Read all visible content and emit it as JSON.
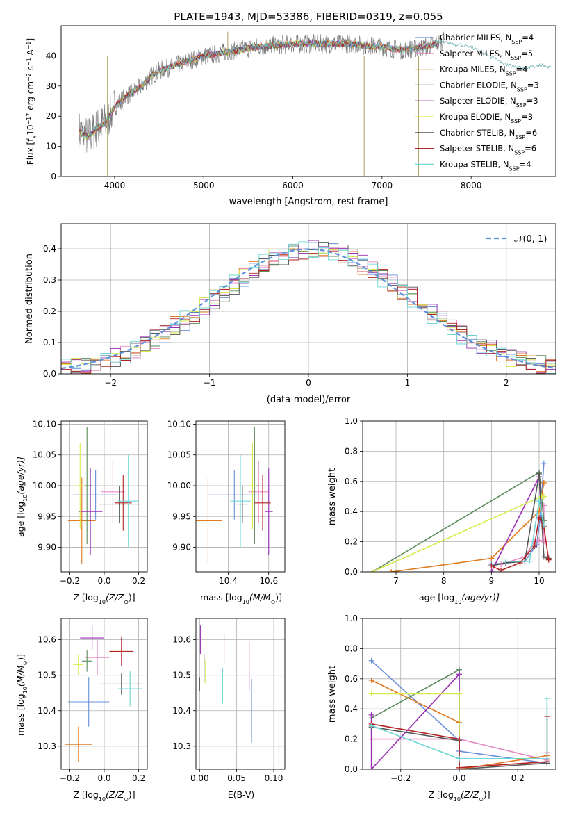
{
  "colors": [
    "#6a8fd8",
    "#e88bc5",
    "#e07a1f",
    "#5a8a5a",
    "#9a2fb5",
    "#d6ea4c",
    "#555555",
    "#b22222",
    "#6fd6d6"
  ],
  "legend": {
    "entries": [
      {
        "label": "Chabrier MILES, N",
        "sub": "SSP",
        "eq": "=4"
      },
      {
        "label": "Salpeter MILES, N",
        "sub": "SSP",
        "eq": "=5"
      },
      {
        "label": "Kroupa MILES, N",
        "sub": "SSP",
        "eq": "=4"
      },
      {
        "label": "Chabrier ELODIE, N",
        "sub": "SSP",
        "eq": "=3"
      },
      {
        "label": "Salpeter ELODIE, N",
        "sub": "SSP",
        "eq": "=3"
      },
      {
        "label": "Kroupa ELODIE, N",
        "sub": "SSP",
        "eq": "=3"
      },
      {
        "label": "Chabrier STELIB, N",
        "sub": "SSP",
        "eq": "=6"
      },
      {
        "label": "Salpeter STELIB, N",
        "sub": "SSP",
        "eq": "=6"
      },
      {
        "label": "Kroupa STELIB, N",
        "sub": "SSP",
        "eq": "=4"
      }
    ]
  },
  "chart_data": [
    {
      "id": "spectrum",
      "type": "line",
      "title": "PLATE=1943, MJD=53386, FIBERID=0319, z=0.055",
      "xlabel": "wavelength [Angstrom, rest frame]",
      "ylabel": "Flux [f",
      "ylabel_parts": [
        "λ",
        "10",
        "−17",
        "erg cm",
        "−2",
        "s",
        "−1",
        "A",
        "−1",
        "]"
      ],
      "xlim": [
        3400,
        8950
      ],
      "ylim": [
        0,
        50
      ],
      "xticks": [
        4000,
        5000,
        6000,
        7000,
        8000
      ],
      "yticks": [
        0,
        10,
        20,
        30,
        40
      ],
      "continuum": {
        "x": [
          3600,
          3700,
          3800,
          3900,
          4000,
          4100,
          4200,
          4300,
          4400,
          4500,
          4600,
          4800,
          5000,
          5200,
          5400,
          5600,
          5800,
          6000,
          6200,
          6400,
          6600,
          6800,
          7000,
          7200,
          7400,
          7600,
          7700
        ],
        "y": [
          15,
          13,
          16,
          18,
          23,
          26,
          28,
          30,
          33,
          35,
          36,
          38,
          40,
          41,
          42,
          43,
          43.5,
          44,
          44,
          44,
          44,
          43.5,
          43,
          42,
          42.5,
          44,
          45
        ]
      },
      "data_end": {
        "x": [
          7600,
          7800,
          8000,
          8200,
          8400,
          8600,
          8800,
          8900
        ],
        "y": [
          45,
          44,
          43,
          40,
          37,
          36,
          37,
          36
        ]
      },
      "spikes": [
        {
          "x": 3920,
          "y": 0
        },
        {
          "x": 6800,
          "y": 0
        },
        {
          "x": 7410,
          "y": 0
        },
        {
          "x": 5270,
          "y": 48
        }
      ]
    },
    {
      "id": "residuals",
      "type": "step",
      "xlabel": "(data-model)/error",
      "ylabel": "Normed distribution",
      "xlim": [
        -2.5,
        2.5
      ],
      "ylim": [
        0,
        0.48
      ],
      "xticks": [
        -2,
        -1,
        0,
        1,
        2
      ],
      "yticks": [
        0.0,
        0.1,
        0.2,
        0.3,
        0.4
      ],
      "legend_label": "𝒩(0, 1)",
      "bin_width": 0.1
    },
    {
      "id": "age_vs_Z",
      "type": "scatter",
      "xlabel": "Z [log",
      "xlabel_parts": [
        "10",
        "(Z/Z",
        "⊙",
        ")]"
      ],
      "ylabel": "age  [log",
      "ylabel_parts": [
        "10",
        "(age/yr)]"
      ],
      "xlim": [
        -0.25,
        0.25
      ],
      "ylim": [
        9.86,
        10.105
      ],
      "xticks": [
        -0.2,
        0.0,
        0.2
      ],
      "yticks": [
        9.9,
        9.95,
        10.0,
        10.05,
        10.1
      ],
      "points": [
        {
          "x": -0.05,
          "xerr": 0.13,
          "y": 9.985,
          "yerr": 0.04
        },
        {
          "x": 0.05,
          "xerr": 0.07,
          "y": 9.99,
          "yerr": 0.05
        },
        {
          "x": -0.13,
          "xerr": 0.08,
          "y": 9.943,
          "yerr": 0.07
        },
        {
          "x": -0.1,
          "xerr": 0.03,
          "y": 10.0,
          "yerr": 0.095
        },
        {
          "x": -0.08,
          "xerr": 0.07,
          "y": 9.958,
          "yerr": 0.07
        },
        {
          "x": -0.14,
          "xerr": 0.03,
          "y": 10.0,
          "yerr": 0.07
        },
        {
          "x": 0.09,
          "xerr": 0.12,
          "y": 9.97,
          "yerr": 0.03
        },
        {
          "x": 0.11,
          "xerr": 0.05,
          "y": 9.972,
          "yerr": 0.045
        },
        {
          "x": 0.14,
          "xerr": 0.06,
          "y": 9.975,
          "yerr": 0.075
        }
      ]
    },
    {
      "id": "age_vs_mass",
      "type": "scatter",
      "xlabel": "mass [log",
      "xlabel_parts": [
        "10",
        "(M/M",
        "⊙",
        ")]"
      ],
      "xlim": [
        10.24,
        10.68
      ],
      "ylim": [
        9.86,
        10.105
      ],
      "xticks": [
        10.4,
        10.6
      ],
      "yticks": [
        9.9,
        9.95,
        10.0,
        10.05,
        10.1
      ],
      "points": [
        {
          "x": 10.43,
          "xerr": 0.13,
          "y": 9.985,
          "yerr": 0.04
        },
        {
          "x": 10.55,
          "xerr": 0.05,
          "y": 9.99,
          "yerr": 0.05
        },
        {
          "x": 10.3,
          "xerr": 0.07,
          "y": 9.943,
          "yerr": 0.07
        },
        {
          "x": 10.53,
          "xerr": 0.02,
          "y": 10.0,
          "yerr": 0.095
        },
        {
          "x": 10.6,
          "xerr": 0.02,
          "y": 9.958,
          "yerr": 0.07
        },
        {
          "x": 10.52,
          "xerr": 0.02,
          "y": 10.0,
          "yerr": 0.07
        },
        {
          "x": 10.47,
          "xerr": 0.03,
          "y": 9.97,
          "yerr": 0.03
        },
        {
          "x": 10.57,
          "xerr": 0.04,
          "y": 9.972,
          "yerr": 0.045
        },
        {
          "x": 10.46,
          "xerr": 0.05,
          "y": 9.975,
          "yerr": 0.075
        }
      ]
    },
    {
      "id": "mass_weight_vs_age",
      "type": "line",
      "xlabel": "age  [log",
      "xlabel_parts": [
        "10",
        "(age/yr)]"
      ],
      "ylabel": "mass weight",
      "xlim": [
        6.3,
        10.35
      ],
      "ylim": [
        0,
        1
      ],
      "xticks": [
        7,
        8,
        9,
        10
      ],
      "yticks": [
        0.0,
        0.2,
        0.4,
        0.6,
        0.8,
        1.0
      ],
      "series": [
        {
          "x": [
            9.0,
            9.7,
            9.95,
            10.02,
            10.1
          ],
          "y": [
            0.05,
            0.07,
            0.18,
            0.35,
            0.72
          ]
        },
        {
          "x": [
            9.2,
            9.7,
            9.9,
            10.0,
            10.1,
            10.1
          ],
          "y": [
            0.05,
            0.1,
            0.2,
            0.21,
            0.2,
            0.44
          ]
        },
        {
          "x": [
            6.9,
            9.0,
            9.7,
            10.0,
            10.1
          ],
          "y": [
            0.0,
            0.09,
            0.31,
            0.4,
            0.59
          ]
        },
        {
          "x": [
            6.5,
            10.0,
            10.1
          ],
          "y": [
            0.0,
            0.66,
            0.34
          ]
        },
        {
          "x": [
            9.0,
            10.0,
            10.05
          ],
          "y": [
            0.0,
            0.63,
            0.36
          ]
        },
        {
          "x": [
            6.5,
            10.05,
            10.1
          ],
          "y": [
            0.0,
            0.5,
            0.5
          ]
        },
        {
          "x": [
            9.0,
            9.3,
            9.7,
            10.0,
            10.1,
            10.2
          ],
          "y": [
            0.04,
            0.06,
            0.07,
            0.65,
            0.1,
            0.09
          ]
        },
        {
          "x": [
            9.0,
            9.2,
            9.6,
            9.9,
            10.0,
            10.1,
            10.2
          ],
          "y": [
            0.04,
            0.01,
            0.06,
            0.17,
            0.36,
            0.3,
            0.08
          ]
        },
        {
          "x": [
            9.3,
            9.8,
            10.0,
            10.1
          ],
          "y": [
            0.07,
            0.07,
            0.47,
            0.31
          ]
        }
      ]
    },
    {
      "id": "mass_vs_Z",
      "type": "scatter",
      "xlabel": "Z [log",
      "xlabel_parts": [
        "10",
        "(Z/Z",
        "⊙",
        ")]"
      ],
      "ylabel": "mass [log",
      "ylabel_parts": [
        "10",
        "(M/M",
        "⊙",
        ")]"
      ],
      "xlim": [
        -0.25,
        0.25
      ],
      "ylim": [
        10.235,
        10.66
      ],
      "xticks": [
        -0.2,
        0.0,
        0.2
      ],
      "yticks": [
        10.3,
        10.4,
        10.5,
        10.6
      ],
      "points": [
        {
          "x": -0.09,
          "xerr": 0.12,
          "y": 10.425,
          "yerr": 0.07
        },
        {
          "x": -0.04,
          "xerr": 0.07,
          "y": 10.55,
          "yerr": 0.05
        },
        {
          "x": -0.15,
          "xerr": 0.08,
          "y": 10.305,
          "yerr": 0.05
        },
        {
          "x": -0.1,
          "xerr": 0.03,
          "y": 10.54,
          "yerr": 0.03
        },
        {
          "x": -0.07,
          "xerr": 0.07,
          "y": 10.605,
          "yerr": 0.035
        },
        {
          "x": -0.15,
          "xerr": 0.03,
          "y": 10.53,
          "yerr": 0.03
        },
        {
          "x": 0.1,
          "xerr": 0.12,
          "y": 10.475,
          "yerr": 0.03
        },
        {
          "x": 0.1,
          "xerr": 0.07,
          "y": 10.567,
          "yerr": 0.04
        },
        {
          "x": 0.15,
          "xerr": 0.07,
          "y": 10.462,
          "yerr": 0.05
        }
      ]
    },
    {
      "id": "mass_vs_EBV",
      "type": "scatter",
      "xlabel": "E(B-V)",
      "xlim": [
        -0.005,
        0.115
      ],
      "ylim": [
        10.235,
        10.66
      ],
      "xticks": [
        0.0,
        0.05,
        0.1
      ],
      "yticks": [
        10.3,
        10.4,
        10.5,
        10.6
      ],
      "points": [
        {
          "x": 0.07,
          "xerr": 0.0,
          "y": 10.4,
          "yerr": 0.09
        },
        {
          "x": 0.067,
          "xerr": 0.0,
          "y": 10.525,
          "yerr": 0.07
        },
        {
          "x": 0.107,
          "xerr": 0.0,
          "y": 10.32,
          "yerr": 0.075
        },
        {
          "x": 0.006,
          "xerr": 0.0,
          "y": 10.52,
          "yerr": 0.04
        },
        {
          "x": 0.001,
          "xerr": 0.0,
          "y": 10.6,
          "yerr": 0.04
        },
        {
          "x": 0.008,
          "xerr": 0.0,
          "y": 10.51,
          "yerr": 0.035
        },
        {
          "x": 0.0,
          "xerr": 0.0,
          "y": 10.475,
          "yerr": 0.02
        },
        {
          "x": 0.033,
          "xerr": 0.0,
          "y": 10.575,
          "yerr": 0.04
        },
        {
          "x": 0.031,
          "xerr": 0.0,
          "y": 10.47,
          "yerr": 0.05
        }
      ]
    },
    {
      "id": "mass_weight_vs_Z",
      "type": "line",
      "xlabel": "Z [log",
      "xlabel_parts": [
        "10",
        "(Z/Z",
        "⊙",
        ")]"
      ],
      "ylabel": "mass weight",
      "xlim": [
        -0.33,
        0.33
      ],
      "ylim": [
        0,
        1
      ],
      "xticks": [
        -0.2,
        0.0,
        0.2
      ],
      "yticks": [
        0.0,
        0.2,
        0.4,
        0.6,
        0.8,
        1.0
      ],
      "series": [
        {
          "x": [
            -0.3,
            0.0,
            0.0,
            0.3
          ],
          "y": [
            0.72,
            0.19,
            0.12,
            0.04
          ]
        },
        {
          "x": [
            -0.3,
            -0.3,
            0.0,
            0.3,
            0.3
          ],
          "y": [
            0.34,
            0.2,
            0.2,
            0.06,
            0.11
          ]
        },
        {
          "x": [
            -0.3,
            0.0,
            0.0,
            0.3
          ],
          "y": [
            0.59,
            0.31,
            0.0,
            0.09
          ]
        },
        {
          "x": [
            -0.3,
            0.0,
            0.0
          ],
          "y": [
            0.34,
            0.66,
            0.0
          ]
        },
        {
          "x": [
            -0.3,
            -0.3,
            0.0,
            0.0
          ],
          "y": [
            0.36,
            0.0,
            0.63,
            0.0
          ]
        },
        {
          "x": [
            -0.3,
            0.0,
            0.0
          ],
          "y": [
            0.5,
            0.5,
            0.0
          ]
        },
        {
          "x": [
            -0.3,
            0.0,
            0.0,
            0.3
          ],
          "y": [
            0.28,
            0.19,
            0.0,
            0.04
          ]
        },
        {
          "x": [
            -0.3,
            0.0,
            0.0,
            0.3,
            0.3
          ],
          "y": [
            0.3,
            0.2,
            0.01,
            0.05,
            0.35
          ]
        },
        {
          "x": [
            -0.3,
            0.0,
            0.0,
            0.3,
            0.3
          ],
          "y": [
            0.29,
            0.07,
            0.07,
            0.07,
            0.47
          ]
        }
      ]
    }
  ]
}
